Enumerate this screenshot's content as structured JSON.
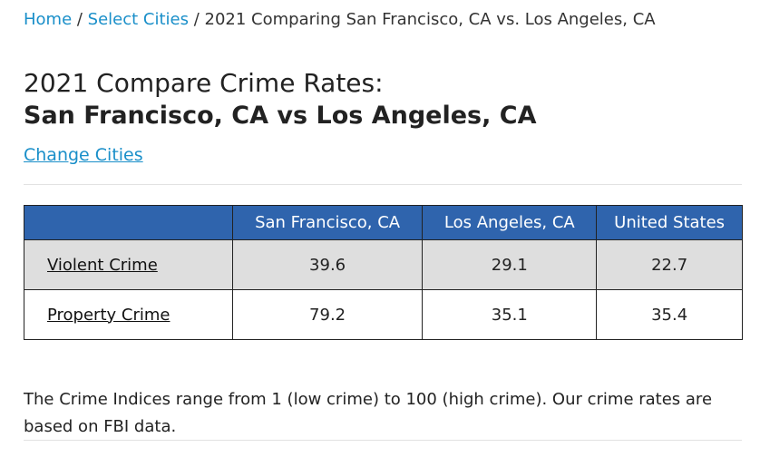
{
  "breadcrumb": {
    "home": "Home",
    "sep1": " / ",
    "select_cities": "Select Cities",
    "sep2": " / ",
    "current": "2021 Comparing San Francisco, CA vs. Los Angeles, CA"
  },
  "heading": {
    "line1": "2021 Compare Crime Rates:",
    "line2": "San Francisco, CA vs Los Angeles, CA"
  },
  "change_cities_label": "Change Cities",
  "table": {
    "headers": [
      "",
      "San Francisco, CA",
      "Los Angeles, CA",
      "United States"
    ],
    "rows": [
      {
        "label": "Violent Crime",
        "values": [
          "39.6",
          "29.1",
          "22.7"
        ]
      },
      {
        "label": "Property Crime",
        "values": [
          "79.2",
          "35.1",
          "35.4"
        ]
      }
    ]
  },
  "note": "The Crime Indices range from 1 (low crime) to 100 (high crime). Our crime rates are based on FBI data.",
  "colors": {
    "link": "#1a8fc9",
    "table_header": "#2f64ad",
    "row_shaded": "#dedede"
  }
}
